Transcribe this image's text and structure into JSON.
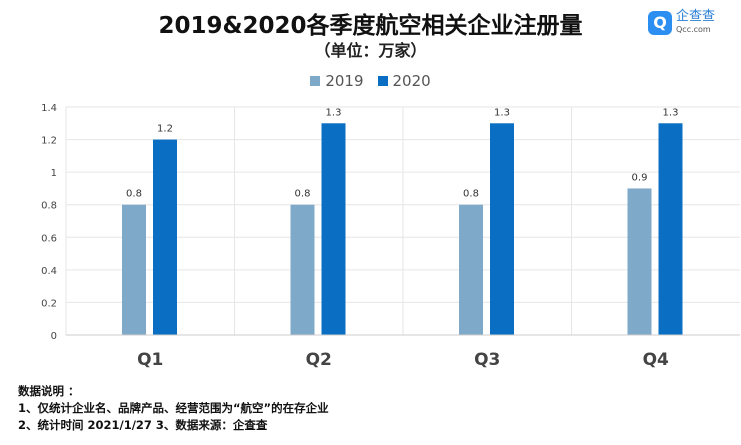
{
  "chart_data": {
    "type": "bar",
    "title": "2019&2020各季度航空相关企业注册量",
    "subtitle": "（单位：万家）",
    "categories": [
      "Q1",
      "Q2",
      "Q3",
      "Q4"
    ],
    "series": [
      {
        "name": "2019",
        "color": "#7fa9c9",
        "values": [
          0.8,
          0.8,
          0.8,
          0.9
        ]
      },
      {
        "name": "2020",
        "color": "#0a6fc2",
        "values": [
          1.2,
          1.3,
          1.3,
          1.3
        ]
      }
    ],
    "ylim": [
      0,
      1.4
    ],
    "yticks": [
      "0",
      "0.2",
      "0.4",
      "0.6",
      "0.8",
      "1",
      "1.2",
      "1.4"
    ],
    "grid": true,
    "legend": "top"
  },
  "logo": {
    "name": "企查查",
    "domain": "Qcc.com"
  },
  "notes": {
    "heading": "数据说明 ：",
    "line1": "1、仅统计企业名、品牌产品、经营范围为“航空”的在存企业",
    "line2": "2、统计时间  2021/1/27    3、数据来源：企查查"
  }
}
